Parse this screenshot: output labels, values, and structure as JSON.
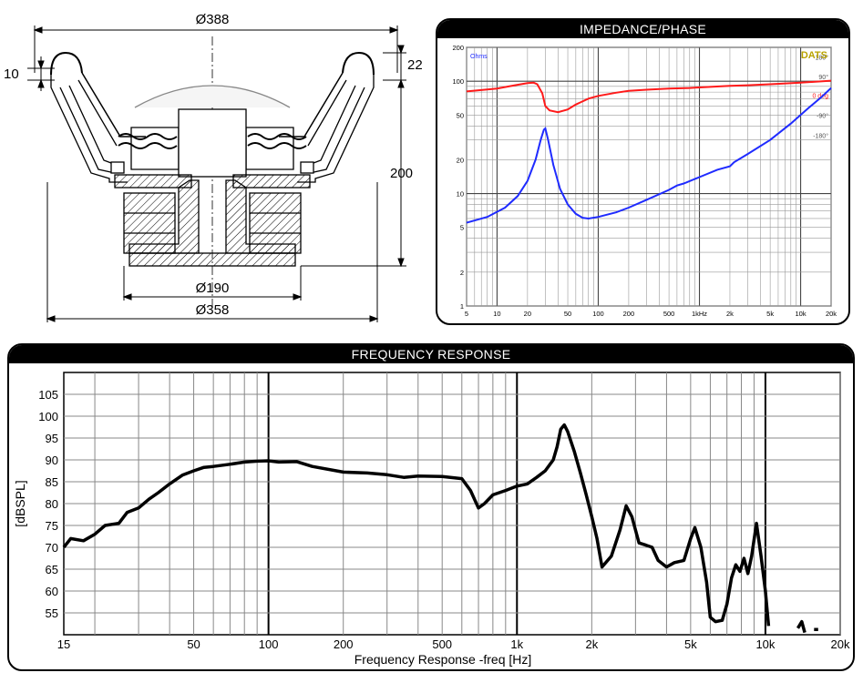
{
  "drawing": {
    "dim_top": "Ø388",
    "dim_left": "10",
    "dim_right_small": "22",
    "dim_right_height": "200",
    "dim_bottom_magnet": "Ø190",
    "dim_bottom_frame": "Ø358"
  },
  "chart_data": [
    {
      "type": "line",
      "title": "IMPEDANCE/PHASE",
      "brand": "DATS",
      "y_unit_label": "Ohms",
      "x_scale": "log",
      "y_scale": "log",
      "xlim": [
        5,
        20000
      ],
      "ylim": [
        1,
        200
      ],
      "grid": true,
      "x_tick_labels": [
        {
          "v": 5,
          "t": "5"
        },
        {
          "v": 10,
          "t": "10"
        },
        {
          "v": 20,
          "t": "20"
        },
        {
          "v": 50,
          "t": "50"
        },
        {
          "v": 100,
          "t": "100"
        },
        {
          "v": 200,
          "t": "200"
        },
        {
          "v": 500,
          "t": "500"
        },
        {
          "v": 1000,
          "t": "1kHz"
        },
        {
          "v": 2000,
          "t": "2k"
        },
        {
          "v": 5000,
          "t": "5k"
        },
        {
          "v": 10000,
          "t": "10k"
        },
        {
          "v": 20000,
          "t": "20k"
        }
      ],
      "y_tick_labels": [
        {
          "v": 1,
          "t": "1"
        },
        {
          "v": 2,
          "t": "2"
        },
        {
          "v": 5,
          "t": "5"
        },
        {
          "v": 10,
          "t": "10"
        },
        {
          "v": 20,
          "t": "20"
        },
        {
          "v": 50,
          "t": "50"
        },
        {
          "v": 100,
          "t": "100"
        },
        {
          "v": 200,
          "t": "200"
        }
      ],
      "phase_axis_labels": [
        {
          "v": 165,
          "t": "180°"
        },
        {
          "v": 110,
          "t": "90°"
        },
        {
          "v": 75,
          "t": "0 deg"
        },
        {
          "v": 50,
          "t": "-90°"
        },
        {
          "v": 33,
          "t": "-180°"
        }
      ],
      "series": [
        {
          "color": "#1f2bff",
          "points": [
            [
              5,
              5.5
            ],
            [
              8,
              6.2
            ],
            [
              12,
              7.5
            ],
            [
              16,
              9.5
            ],
            [
              20,
              13
            ],
            [
              24,
              20
            ],
            [
              27,
              30
            ],
            [
              29,
              37
            ],
            [
              30,
              38
            ],
            [
              32,
              30
            ],
            [
              36,
              18
            ],
            [
              42,
              11
            ],
            [
              50,
              8
            ],
            [
              60,
              6.6
            ],
            [
              70,
              6.1
            ],
            [
              80,
              6.0
            ],
            [
              100,
              6.2
            ],
            [
              150,
              6.8
            ],
            [
              200,
              7.5
            ],
            [
              300,
              8.8
            ],
            [
              500,
              10.8
            ],
            [
              600,
              11.8
            ],
            [
              700,
              12.3
            ],
            [
              1000,
              14
            ],
            [
              1500,
              16.3
            ],
            [
              2000,
              17.5
            ],
            [
              2200,
              19
            ],
            [
              3000,
              22.5
            ],
            [
              5000,
              30
            ],
            [
              8000,
              42
            ],
            [
              12000,
              58
            ],
            [
              16000,
              72
            ],
            [
              20000,
              87
            ]
          ]
        },
        {
          "color": "#ff1a1a",
          "points": [
            [
              5,
              81
            ],
            [
              10,
              86
            ],
            [
              15,
              92
            ],
            [
              20,
              96
            ],
            [
              23,
              97
            ],
            [
              25,
              94
            ],
            [
              28,
              78
            ],
            [
              30,
              60
            ],
            [
              33,
              55
            ],
            [
              40,
              53
            ],
            [
              50,
              56
            ],
            [
              60,
              62
            ],
            [
              80,
              70
            ],
            [
              100,
              74
            ],
            [
              150,
              79
            ],
            [
              200,
              82
            ],
            [
              300,
              84
            ],
            [
              500,
              86
            ],
            [
              800,
              87
            ],
            [
              1000,
              88
            ],
            [
              2000,
              91
            ],
            [
              3000,
              92
            ],
            [
              5000,
              94
            ],
            [
              10000,
              97
            ],
            [
              20000,
              101
            ]
          ]
        }
      ]
    },
    {
      "type": "line",
      "title": "FREQUENCY RESPONSE",
      "xlabel": "Frequency Response -freq [Hz]",
      "ylabel": "[dBSPL]",
      "x_scale": "log",
      "xlim": [
        15,
        20000
      ],
      "ylim": [
        50,
        110
      ],
      "grid": true,
      "x_tick_labels": [
        {
          "v": 15,
          "t": "15"
        },
        {
          "v": 50,
          "t": "50"
        },
        {
          "v": 100,
          "t": "100"
        },
        {
          "v": 200,
          "t": "200"
        },
        {
          "v": 500,
          "t": "500"
        },
        {
          "v": 1000,
          "t": "1k"
        },
        {
          "v": 2000,
          "t": "2k"
        },
        {
          "v": 5000,
          "t": "5k"
        },
        {
          "v": 10000,
          "t": "10k"
        },
        {
          "v": 20000,
          "t": "20k"
        }
      ],
      "y_ticks": [
        55,
        60,
        65,
        70,
        75,
        80,
        85,
        90,
        95,
        100,
        105
      ],
      "series": [
        {
          "color": "#000000",
          "points": [
            [
              15,
              70
            ],
            [
              16,
              72
            ],
            [
              18,
              71.5
            ],
            [
              20,
              73
            ],
            [
              22,
              75
            ],
            [
              25,
              75.5
            ],
            [
              27,
              78
            ],
            [
              30,
              79
            ],
            [
              33,
              81
            ],
            [
              36,
              82.5
            ],
            [
              40,
              84.5
            ],
            [
              45,
              86.5
            ],
            [
              50,
              87.5
            ],
            [
              55,
              88.3
            ],
            [
              60,
              88.5
            ],
            [
              70,
              89
            ],
            [
              80,
              89.5
            ],
            [
              90,
              89.7
            ],
            [
              100,
              89.8
            ],
            [
              110,
              89.5
            ],
            [
              130,
              89.6
            ],
            [
              150,
              88.5
            ],
            [
              200,
              87.2
            ],
            [
              250,
              87
            ],
            [
              300,
              86.6
            ],
            [
              350,
              86
            ],
            [
              400,
              86.3
            ],
            [
              500,
              86.2
            ],
            [
              600,
              85.7
            ],
            [
              650,
              83
            ],
            [
              700,
              79
            ],
            [
              740,
              80
            ],
            [
              800,
              82
            ],
            [
              900,
              83
            ],
            [
              1000,
              84
            ],
            [
              1100,
              84.5
            ],
            [
              1200,
              86
            ],
            [
              1300,
              87.5
            ],
            [
              1400,
              90
            ],
            [
              1450,
              93
            ],
            [
              1500,
              97
            ],
            [
              1550,
              98
            ],
            [
              1600,
              96.5
            ],
            [
              1700,
              92
            ],
            [
              1800,
              87
            ],
            [
              1900,
              82
            ],
            [
              2000,
              77
            ],
            [
              2100,
              72
            ],
            [
              2200,
              65.5
            ],
            [
              2400,
              68
            ],
            [
              2600,
              74
            ],
            [
              2750,
              79.5
            ],
            [
              2900,
              77
            ],
            [
              3100,
              71
            ],
            [
              3300,
              70.5
            ],
            [
              3500,
              70
            ],
            [
              3700,
              67
            ],
            [
              4000,
              65.5
            ],
            [
              4300,
              66.5
            ],
            [
              4700,
              67
            ],
            [
              5000,
              72
            ],
            [
              5200,
              74.5
            ],
            [
              5500,
              70
            ],
            [
              5800,
              62
            ],
            [
              6000,
              54
            ],
            [
              6300,
              53
            ],
            [
              6700,
              53.3
            ],
            [
              7000,
              57
            ],
            [
              7300,
              63
            ],
            [
              7600,
              66
            ],
            [
              7900,
              64.5
            ],
            [
              8200,
              67.5
            ],
            [
              8500,
              64
            ],
            [
              8800,
              68
            ],
            [
              9200,
              75.5
            ],
            [
              9600,
              68
            ],
            [
              10000,
              60
            ],
            [
              10300,
              52
            ]
          ]
        },
        {
          "color": "#000000",
          "points": [
            [
              13500,
              51.5
            ],
            [
              14000,
              53
            ],
            [
              14400,
              50.5
            ]
          ]
        },
        {
          "color": "#000000",
          "points": [
            [
              15700,
              51.2
            ],
            [
              16300,
              51.2
            ]
          ]
        }
      ]
    }
  ]
}
